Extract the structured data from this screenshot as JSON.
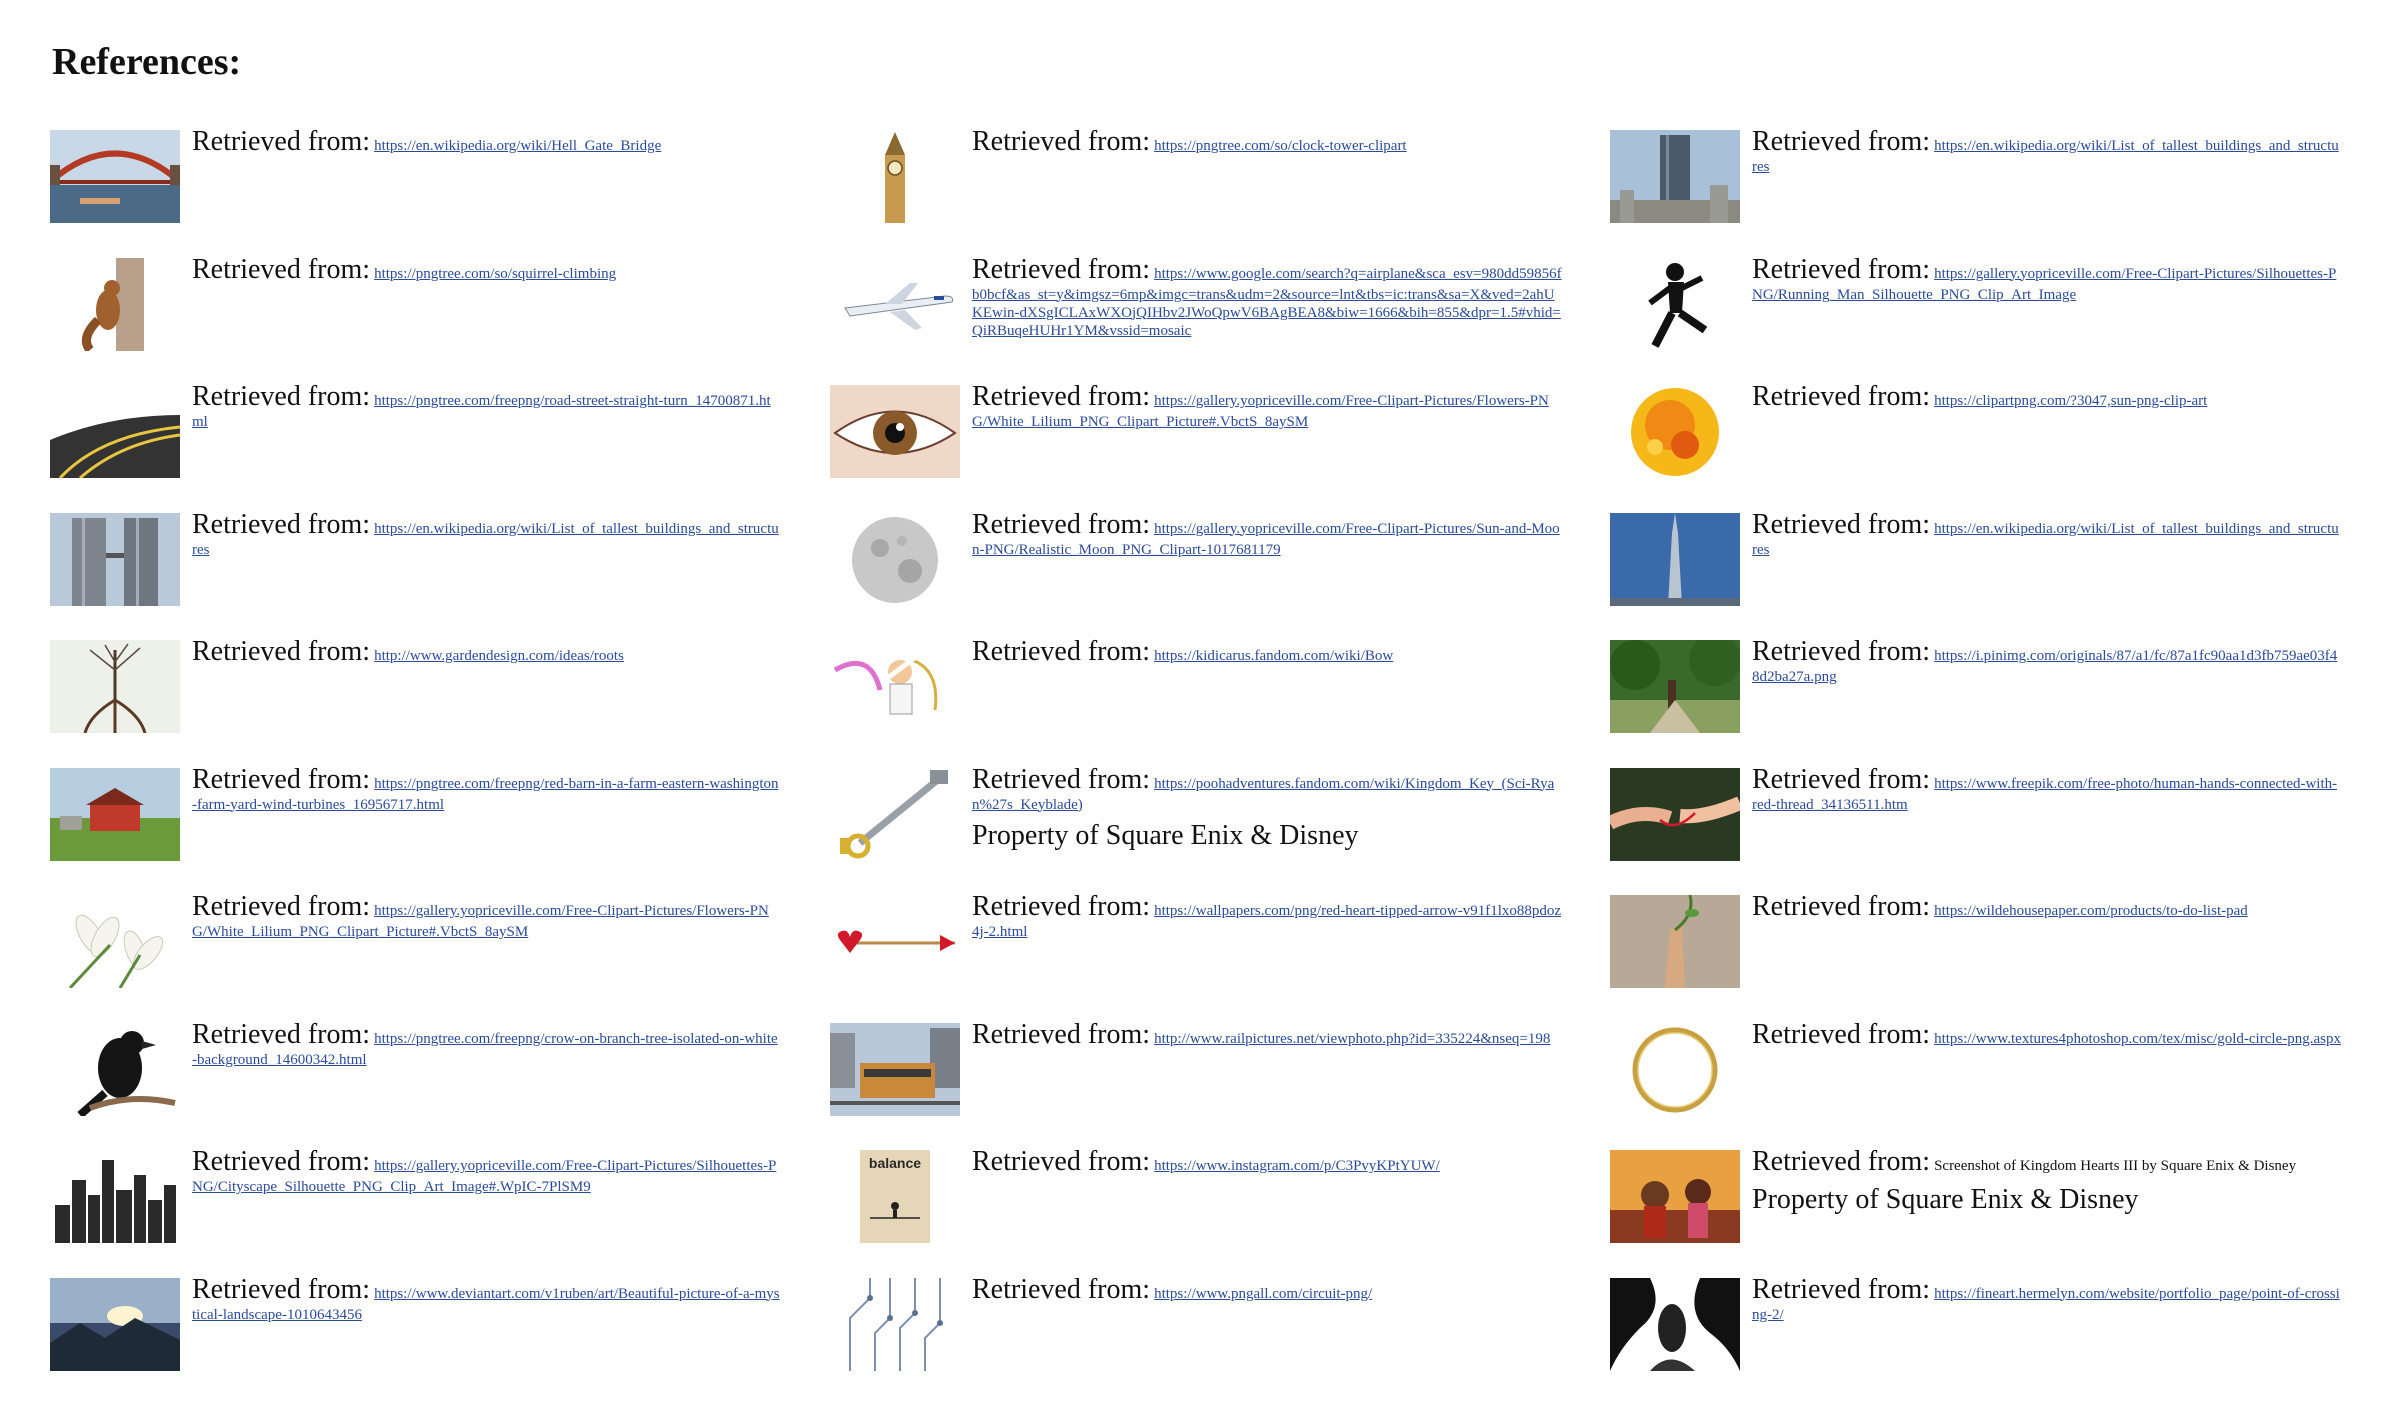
{
  "title": "References:",
  "retrieved_label": "Retrieved from:",
  "columns": [
    {
      "entries": [
        {
          "image": "hell-gate-bridge",
          "url": "https://en.wikipedia.org/wiki/Hell_Gate_Bridge"
        },
        {
          "image": "squirrel-climbing",
          "url": "https://pngtree.com/so/squirrel-climbing"
        },
        {
          "image": "road",
          "url": "https://pngtree.com/freepng/road-street-straight-turn_14700871.html"
        },
        {
          "image": "twin-towers",
          "url": "https://en.wikipedia.org/wiki/List_of_tallest_buildings_and_structures"
        },
        {
          "image": "tree-roots",
          "url": "http://www.gardendesign.com/ideas/roots"
        },
        {
          "image": "red-barn",
          "url": "https://pngtree.com/freepng/red-barn-in-a-farm-eastern-washington-farm-yard-wind-turbines_16956717.html"
        },
        {
          "image": "white-lilium",
          "url": "https://gallery.yopriceville.com/Free-Clipart-Pictures/Flowers-PNG/White_Lilium_PNG_Clipart_Picture#.VbctS_8aySM"
        },
        {
          "image": "crow",
          "url": "https://pngtree.com/freepng/crow-on-branch-tree-isolated-on-white-background_14600342.html"
        },
        {
          "image": "cityscape-silhouette",
          "url": "https://gallery.yopriceville.com/Free-Clipart-Pictures/Silhouettes-PNG/Cityscape_Silhouette_PNG_Clip_Art_Image#.WpIC-7PlSM9"
        },
        {
          "image": "mystical-landscape",
          "url": "https://www.deviantart.com/v1ruben/art/Beautiful-picture-of-a-mystical-landscape-1010643456"
        }
      ]
    },
    {
      "entries": [
        {
          "image": "clock-tower",
          "url": "https://pngtree.com/so/clock-tower-clipart"
        },
        {
          "image": "airplane",
          "url": "https://www.google.com/search?q=airplane&sca_esv=980dd59856fb0bcf&as_st=y&imgsz=6mp&imgc=trans&udm=2&source=lnt&tbs=ic:trans&sa=X&ved=2ahUKEwin-dXSgICLAxWXOjQIHbv2JWoQpwV6BAgBEA8&biw=1666&bih=855&dpr=1.5#vhid=QiRBuqeHUHr1YM&vssid=mosaic"
        },
        {
          "image": "eye",
          "url": "https://gallery.yopriceville.com/Free-Clipart-Pictures/Flowers-PNG/White_Lilium_PNG_Clipart_Picture#.VbctS_8aySM"
        },
        {
          "image": "moon",
          "url": "https://gallery.yopriceville.com/Free-Clipart-Pictures/Sun-and-Moon-PNG/Realistic_Moon_PNG_Clipart-1017681179"
        },
        {
          "image": "archer-character",
          "url": "https://kidicarus.fandom.com/wiki/Bow"
        },
        {
          "image": "keyblade",
          "url": "https://poohadventures.fandom.com/wiki/Kingdom_Key_(Sci-Ryan%27s_Keyblade)",
          "note": "Property of Square Enix & Disney"
        },
        {
          "image": "heart-arrow",
          "url": "https://wallpapers.com/png/red-heart-tipped-arrow-v91f1lxo88pdoz4j-2.html"
        },
        {
          "image": "train",
          "url": "http://www.railpictures.net/viewphoto.php?id=335224&nseq=198"
        },
        {
          "image": "balance-poster",
          "url": "https://www.instagram.com/p/C3PvyKPtYUW/",
          "thumb_text": "balance"
        },
        {
          "image": "circuit",
          "url": "https://www.pngall.com/circuit-png/"
        }
      ]
    },
    {
      "entries": [
        {
          "image": "tall-building",
          "url": "https://en.wikipedia.org/wiki/List_of_tallest_buildings_and_structures"
        },
        {
          "image": "running-man",
          "url": "https://gallery.yopriceville.com/Free-Clipart-Pictures/Silhouettes-PNG/Running_Man_Silhouette_PNG_Clip_Art_Image"
        },
        {
          "image": "sun",
          "url": "https://clipartpng.com/?3047,sun-png-clip-art"
        },
        {
          "image": "tower-spire",
          "url": "https://en.wikipedia.org/wiki/List_of_tallest_buildings_and_structures"
        },
        {
          "image": "park",
          "url": "https://i.pinimg.com/originals/87/a1/fc/87a1fc90aa1d3fb759ae03f48d2ba27a.png"
        },
        {
          "image": "red-thread-hands",
          "url": "https://www.freepik.com/free-photo/human-hands-connected-with-red-thread_34136511.htm"
        },
        {
          "image": "hand-vine",
          "url": "https://wildehousepaper.com/products/to-do-list-pad"
        },
        {
          "image": "gold-circle",
          "url": "https://www.textures4photoshop.com/tex/misc/gold-circle-png.aspx"
        },
        {
          "image": "kingdom-hearts-screenshot",
          "plain": "Screenshot of Kingdom Hearts III by Square Enix & Disney",
          "note": "Property of Square Enix & Disney"
        },
        {
          "image": "bw-art",
          "url": "https://fineart.hermelyn.com/website/portfolio_page/point-of-crossing-2/"
        }
      ]
    }
  ]
}
